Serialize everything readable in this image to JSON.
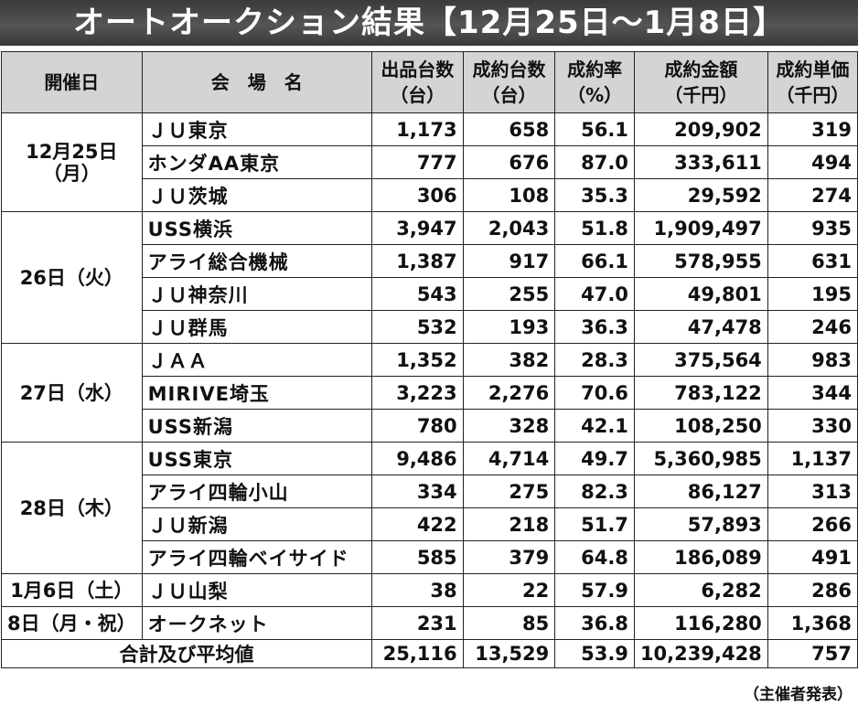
{
  "title": "オートオークション結果【12月25日～1月8日】",
  "headers": {
    "date": "開催日",
    "venue": "会　場　名",
    "listed": [
      "出品台数",
      "（台）"
    ],
    "contracted": [
      "成約台数",
      "（台）"
    ],
    "rate": [
      "成約率",
      "（%）"
    ],
    "amount": [
      "成約金額",
      "（千円）"
    ],
    "unit_price": [
      "成約単価",
      "（千円）"
    ]
  },
  "groups": [
    {
      "date": [
        "12月25日",
        "（月）"
      ],
      "rows": [
        {
          "venue": "ＪＵ東京",
          "listed": "1,173",
          "contracted": "658",
          "rate": "56.1",
          "amount": "209,902",
          "unit_price": "319"
        },
        {
          "venue": "ホンダAA東京",
          "listed": "777",
          "contracted": "676",
          "rate": "87.0",
          "amount": "333,611",
          "unit_price": "494"
        },
        {
          "venue": "ＪＵ茨城",
          "listed": "306",
          "contracted": "108",
          "rate": "35.3",
          "amount": "29,592",
          "unit_price": "274"
        }
      ]
    },
    {
      "date": [
        "26日（火）"
      ],
      "rows": [
        {
          "venue": "USS横浜",
          "listed": "3,947",
          "contracted": "2,043",
          "rate": "51.8",
          "amount": "1,909,497",
          "unit_price": "935"
        },
        {
          "venue": "アライ総合機械",
          "listed": "1,387",
          "contracted": "917",
          "rate": "66.1",
          "amount": "578,955",
          "unit_price": "631"
        },
        {
          "venue": "ＪＵ神奈川",
          "listed": "543",
          "contracted": "255",
          "rate": "47.0",
          "amount": "49,801",
          "unit_price": "195"
        },
        {
          "venue": "ＪＵ群馬",
          "listed": "532",
          "contracted": "193",
          "rate": "36.3",
          "amount": "47,478",
          "unit_price": "246"
        }
      ]
    },
    {
      "date": [
        "27日（水）"
      ],
      "rows": [
        {
          "venue": "ＪＡＡ",
          "listed": "1,352",
          "contracted": "382",
          "rate": "28.3",
          "amount": "375,564",
          "unit_price": "983"
        },
        {
          "venue": "MIRIVE埼玉",
          "listed": "3,223",
          "contracted": "2,276",
          "rate": "70.6",
          "amount": "783,122",
          "unit_price": "344"
        },
        {
          "venue": "USS新潟",
          "listed": "780",
          "contracted": "328",
          "rate": "42.1",
          "amount": "108,250",
          "unit_price": "330"
        }
      ]
    },
    {
      "date": [
        "28日（木）"
      ],
      "rows": [
        {
          "venue": "USS東京",
          "listed": "9,486",
          "contracted": "4,714",
          "rate": "49.7",
          "amount": "5,360,985",
          "unit_price": "1,137"
        },
        {
          "venue": "アライ四輪小山",
          "listed": "334",
          "contracted": "275",
          "rate": "82.3",
          "amount": "86,127",
          "unit_price": "313"
        },
        {
          "venue": "ＪＵ新潟",
          "listed": "422",
          "contracted": "218",
          "rate": "51.7",
          "amount": "57,893",
          "unit_price": "266"
        },
        {
          "venue": "アライ四輪ベイサイド",
          "listed": "585",
          "contracted": "379",
          "rate": "64.8",
          "amount": "186,089",
          "unit_price": "491"
        }
      ]
    },
    {
      "date": [
        "1月6日（土）"
      ],
      "rows": [
        {
          "venue": "ＪＵ山梨",
          "listed": "38",
          "contracted": "22",
          "rate": "57.9",
          "amount": "6,282",
          "unit_price": "286"
        }
      ]
    },
    {
      "date": [
        "8日（月・祝）"
      ],
      "rows": [
        {
          "venue": "オークネット",
          "listed": "231",
          "contracted": "85",
          "rate": "36.8",
          "amount": "116,280",
          "unit_price": "1,368"
        }
      ]
    }
  ],
  "total": {
    "label": "合計及び平均値",
    "listed": "25,116",
    "contracted": "13,529",
    "rate": "53.9",
    "amount": "10,239,428",
    "unit_price": "757"
  },
  "source_note": "（主催者発表）"
}
